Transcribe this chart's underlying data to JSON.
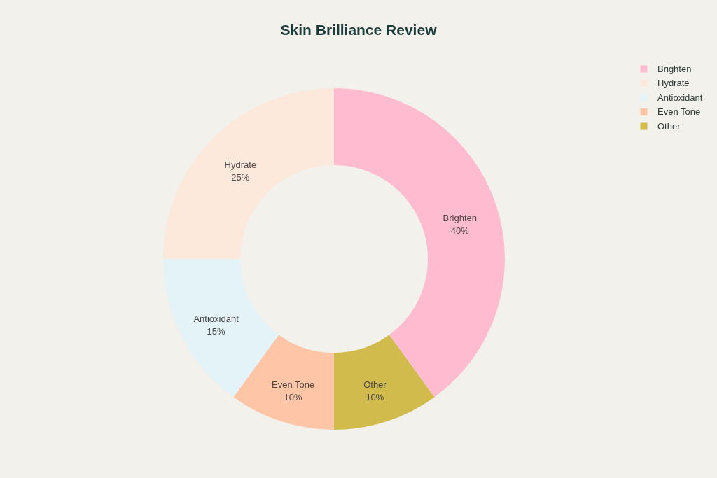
{
  "chart_data": {
    "type": "donut",
    "title": "Skin Brilliance Review",
    "categories": [
      "Brighten",
      "Hydrate",
      "Antioxidant",
      "Even Tone",
      "Other"
    ],
    "values": [
      40,
      25,
      15,
      10,
      10
    ],
    "value_labels": [
      "40%",
      "25%",
      "15%",
      "10%",
      "10%"
    ],
    "colors": [
      "#ffbcd0",
      "#fde8dc",
      "#e4f3f7",
      "#fec6a6",
      "#d0bb4c"
    ],
    "legend": "top right"
  }
}
